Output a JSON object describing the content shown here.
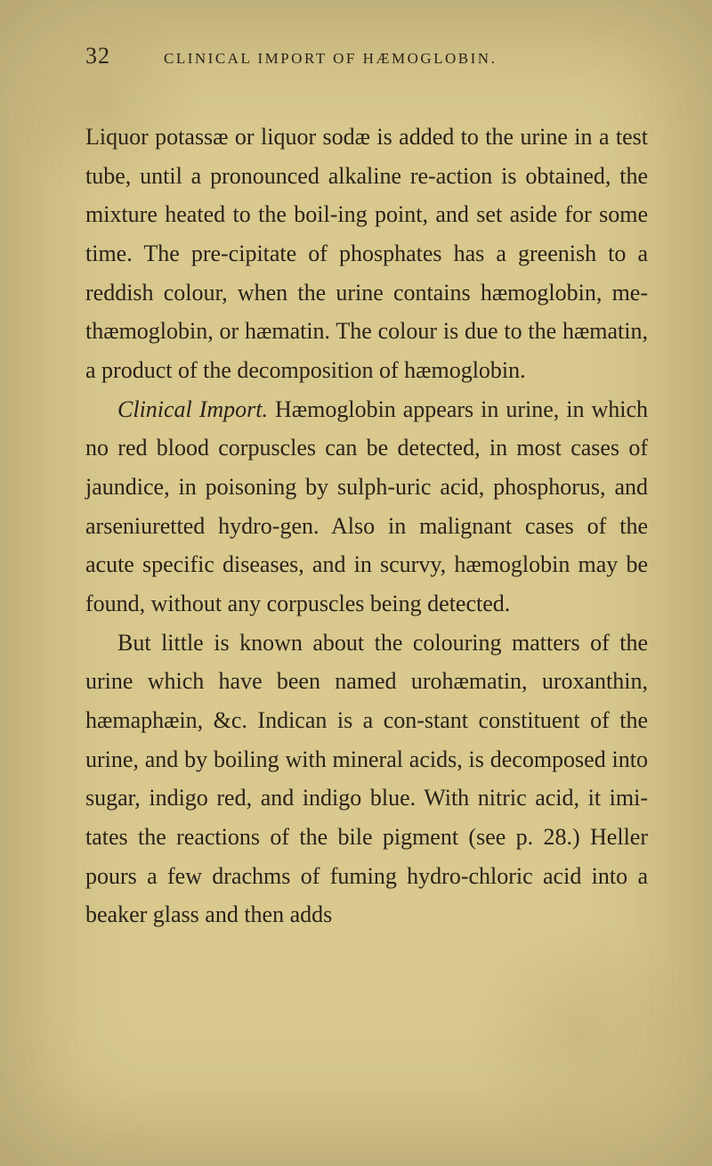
{
  "page": {
    "number": "32",
    "running_title": "CLINICAL IMPORT OF HÆMOGLOBIN.",
    "background_color": "#d9c98e",
    "text_color": "#2a2218",
    "body_fontsize": 26,
    "line_height": 1.68,
    "header_fontsize_pn": 26,
    "header_fontsize_title": 17
  },
  "paragraphs": {
    "p1": "Liquor potassæ or liquor sodæ is added to the urine in a test tube, until a pronounced alkaline re-action is obtained, the mixture heated to the boil-ing point, and set aside for some time. The pre-cipitate of phosphates has a greenish to a reddish colour, when the urine contains hæmoglobin, me-thæmoglobin, or hæmatin. The colour is due to the hæmatin, a product of the decomposition of hæmoglobin.",
    "p2_lead_italic": "Clinical Import.",
    "p2_rest": " Hæmoglobin appears in urine, in which no red blood corpuscles can be detected, in most cases of jaundice, in poisoning by sulph-uric acid, phosphorus, and arseniuretted hydro-gen. Also in malignant cases of the acute specific diseases, and in scurvy, hæmoglobin may be found, without any corpuscles being detected.",
    "p3": "But little is known about the colouring matters of the urine which have been named urohæmatin, uroxanthin, hæmaphæin, &c. Indican is a con-stant constituent of the urine, and by boiling with mineral acids, is decomposed into sugar, indigo red, and indigo blue. With nitric acid, it imi-tates the reactions of the bile pigment (see p. 28.) Heller pours a few drachms of fuming hydro-chloric acid into a beaker glass and then adds"
  }
}
